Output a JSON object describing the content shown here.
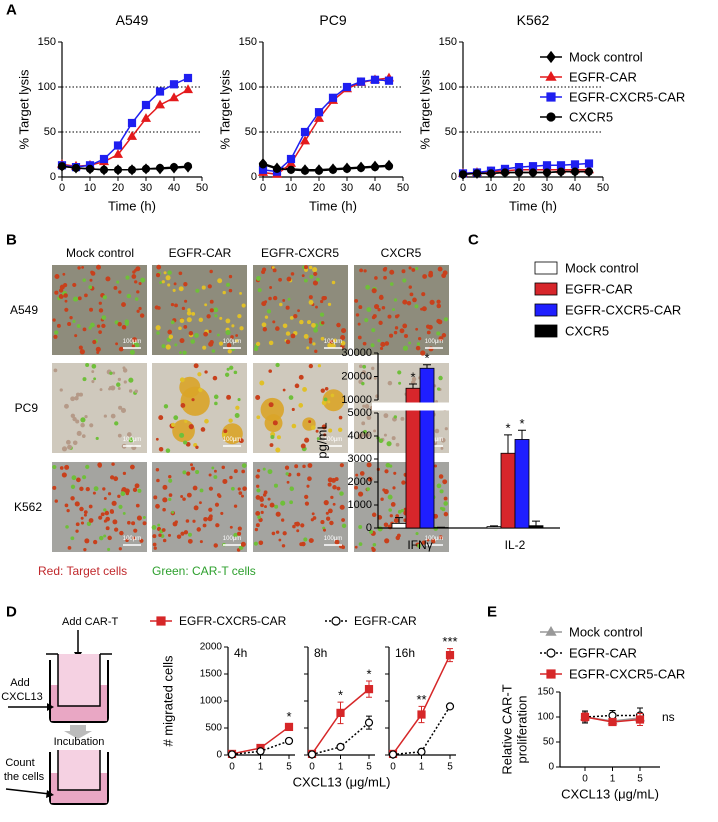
{
  "panel_labels": [
    "A",
    "B",
    "C",
    "D",
    "E"
  ],
  "chart_data": [
    {
      "type": "line",
      "title": "A549",
      "xlabel": "Time (h)",
      "ylabel": "% Target lysis",
      "x": [
        0,
        5,
        10,
        15,
        20,
        25,
        30,
        35,
        40,
        45
      ],
      "xlim": [
        0,
        50
      ],
      "xticks": [
        0,
        10,
        20,
        30,
        40,
        50
      ],
      "ylim": [
        0,
        150
      ],
      "yticks": [
        0,
        50,
        100,
        150
      ],
      "ref_lines": [
        50,
        100
      ],
      "series": [
        {
          "name": "Mock control",
          "color": "#000000",
          "marker": "diamond",
          "values": [
            12,
            10,
            9,
            8,
            8,
            8,
            9,
            9,
            10,
            11
          ]
        },
        {
          "name": "EGFR-CAR",
          "color": "#e41a1c",
          "marker": "triangle",
          "values": [
            14,
            12,
            13,
            17,
            25,
            45,
            65,
            80,
            88,
            97
          ]
        },
        {
          "name": "EGFR-CXCR5-CAR",
          "color": "#1f1ff0",
          "marker": "square",
          "values": [
            13,
            11,
            13,
            20,
            35,
            60,
            80,
            95,
            103,
            110
          ]
        },
        {
          "name": "CXCR5",
          "color": "#000000",
          "marker": "circle",
          "values": [
            12,
            10,
            9,
            8,
            8,
            8,
            9,
            10,
            11,
            12
          ]
        }
      ]
    },
    {
      "type": "line",
      "title": "PC9",
      "xlabel": "Time (h)",
      "ylabel": "% Target lysis",
      "x": [
        0,
        5,
        10,
        15,
        20,
        25,
        30,
        35,
        40,
        45
      ],
      "xlim": [
        0,
        50
      ],
      "xticks": [
        0,
        10,
        20,
        30,
        40,
        50
      ],
      "ylim": [
        0,
        150
      ],
      "yticks": [
        0,
        50,
        100,
        150
      ],
      "ref_lines": [
        50,
        100
      ],
      "series": [
        {
          "name": "Mock control",
          "color": "#000000",
          "marker": "diamond",
          "values": [
            15,
            10,
            9,
            8,
            8,
            9,
            10,
            11,
            12,
            13
          ]
        },
        {
          "name": "EGFR-CAR",
          "color": "#e41a1c",
          "marker": "triangle",
          "values": [
            5,
            3,
            15,
            40,
            65,
            85,
            98,
            105,
            108,
            110
          ]
        },
        {
          "name": "EGFR-CXCR5-CAR",
          "color": "#1f1ff0",
          "marker": "square",
          "values": [
            8,
            6,
            20,
            50,
            72,
            88,
            100,
            106,
            108,
            107
          ]
        },
        {
          "name": "CXCR5",
          "color": "#000000",
          "marker": "circle",
          "values": [
            14,
            9,
            8,
            7,
            7,
            8,
            9,
            10,
            11,
            12
          ]
        }
      ]
    },
    {
      "type": "line",
      "title": "K562",
      "xlabel": "Time (h)",
      "ylabel": "% Target lysis",
      "legend": "right",
      "x": [
        0,
        5,
        10,
        15,
        20,
        25,
        30,
        35,
        40,
        45
      ],
      "xlim": [
        0,
        50
      ],
      "xticks": [
        0,
        10,
        20,
        30,
        40,
        50
      ],
      "ylim": [
        0,
        150
      ],
      "yticks": [
        0,
        50,
        100,
        150
      ],
      "ref_lines": [
        50,
        100
      ],
      "series": [
        {
          "name": "Mock control",
          "color": "#000000",
          "marker": "diamond",
          "values": [
            3,
            4,
            4,
            5,
            5,
            5,
            5,
            6,
            6,
            6
          ]
        },
        {
          "name": "EGFR-CAR",
          "color": "#e41a1c",
          "marker": "triangle",
          "values": [
            4,
            5,
            6,
            7,
            8,
            8,
            8,
            8,
            8,
            8
          ]
        },
        {
          "name": "EGFR-CXCR5-CAR",
          "color": "#1f1ff0",
          "marker": "square",
          "values": [
            4,
            5,
            7,
            9,
            11,
            12,
            13,
            13,
            14,
            15
          ]
        },
        {
          "name": "CXCR5",
          "color": "#000000",
          "marker": "circle",
          "values": [
            3,
            4,
            4,
            5,
            5,
            5,
            5,
            6,
            6,
            6
          ]
        }
      ]
    },
    {
      "type": "bar",
      "categories": [
        "IFNγ",
        "IL-2"
      ],
      "ylabel": "pg/mL",
      "legend": "top",
      "edgecolor": "#000000",
      "ylim": [
        0,
        30000
      ],
      "axis_break": [
        5000,
        10000
      ],
      "yticks": [
        0,
        1000,
        2000,
        3000,
        4000,
        5000,
        10000,
        20000,
        30000
      ],
      "series": [
        {
          "name": "Mock control",
          "color": "#ffffff",
          "values": [
            200,
            60
          ],
          "errors": [
            250,
            30
          ]
        },
        {
          "name": "EGFR-CAR",
          "color": "#d7262b",
          "values": [
            15000,
            3250
          ],
          "errors": [
            1800,
            800
          ]
        },
        {
          "name": "EGFR-CXCR5-CAR",
          "color": "#1f1fff",
          "values": [
            23500,
            3850
          ],
          "errors": [
            1500,
            400
          ]
        },
        {
          "name": "CXCR5",
          "color": "#000000",
          "values": [
            20,
            100
          ],
          "errors": [
            10,
            200
          ]
        }
      ],
      "annotations": [
        {
          "text": "*",
          "category": "IFNγ",
          "series": "EGFR-CAR"
        },
        {
          "text": "*",
          "category": "IFNγ",
          "series": "EGFR-CXCR5-CAR"
        },
        {
          "text": "*",
          "category": "IL-2",
          "series": "EGFR-CAR"
        },
        {
          "text": "*",
          "category": "IL-2",
          "series": "EGFR-CXCR5-CAR"
        }
      ]
    },
    {
      "type": "line",
      "title": "4h",
      "ylabel": "# migrated cells",
      "legend": "top",
      "categories": [
        "0",
        "1",
        "5"
      ],
      "ylim": [
        0,
        2000
      ],
      "yticks": [
        0,
        500,
        1000,
        1500,
        2000
      ],
      "series": [
        {
          "name": "EGFR-CXCR5-CAR",
          "color": "#d62728",
          "marker": "square",
          "values": [
            20,
            130,
            520
          ],
          "errors": [
            10,
            30,
            60
          ]
        },
        {
          "name": "EGFR-CAR",
          "color": "#000000",
          "marker": "circle",
          "open": true,
          "dash": true,
          "values": [
            10,
            70,
            260
          ],
          "errors": [
            5,
            20,
            40
          ]
        }
      ],
      "annotations": [
        {
          "text": "*",
          "category": "5",
          "series": "EGFR-CXCR5-CAR"
        }
      ]
    },
    {
      "type": "line",
      "title": "8h",
      "xlabel": "CXCL13 (μg/mL)",
      "show_ytick_labels": false,
      "categories": [
        "0",
        "1",
        "5"
      ],
      "ylim": [
        0,
        2000
      ],
      "yticks": [
        0,
        500,
        1000,
        1500,
        2000
      ],
      "series": [
        {
          "name": "EGFR-CXCR5-CAR",
          "color": "#d62728",
          "marker": "square",
          "values": [
            20,
            780,
            1220
          ],
          "errors": [
            10,
            200,
            150
          ]
        },
        {
          "name": "EGFR-CAR",
          "color": "#000000",
          "marker": "circle",
          "open": true,
          "dash": true,
          "values": [
            10,
            150,
            600
          ],
          "errors": [
            5,
            40,
            120
          ]
        }
      ],
      "annotations": [
        {
          "text": "*",
          "category": "1",
          "series": "EGFR-CXCR5-CAR"
        },
        {
          "text": "*",
          "category": "5",
          "series": "EGFR-CXCR5-CAR"
        }
      ]
    },
    {
      "type": "line",
      "title": "16h",
      "show_ytick_labels": false,
      "categories": [
        "0",
        "1",
        "5"
      ],
      "ylim": [
        0,
        2000
      ],
      "yticks": [
        0,
        500,
        1000,
        1500,
        2000
      ],
      "series": [
        {
          "name": "EGFR-CXCR5-CAR",
          "color": "#d62728",
          "marker": "square",
          "values": [
            20,
            750,
            1850
          ],
          "errors": [
            10,
            150,
            120
          ]
        },
        {
          "name": "EGFR-CAR",
          "color": "#000000",
          "marker": "circle",
          "open": true,
          "dash": true,
          "values": [
            10,
            60,
            900
          ],
          "errors": [
            5,
            20,
            40
          ]
        }
      ],
      "annotations": [
        {
          "text": "**",
          "category": "1",
          "series": "EGFR-CXCR5-CAR"
        },
        {
          "text": "***",
          "category": "5",
          "series": "EGFR-CXCR5-CAR"
        }
      ]
    },
    {
      "type": "line",
      "ylabel": [
        "Relative CAR-T",
        "proliferation"
      ],
      "xlabel": "CXCL13 (μg/mL)",
      "legend": "top-left",
      "categories": [
        "0",
        "1",
        "5"
      ],
      "ylim": [
        0,
        150
      ],
      "yticks": [
        0,
        50,
        100,
        150
      ],
      "series": [
        {
          "name": "Mock control",
          "color": "#999999",
          "marker": "triangle",
          "values": [
            100,
            92,
            98
          ],
          "errors": [
            10,
            6,
            8
          ]
        },
        {
          "name": "EGFR-CAR",
          "color": "#000000",
          "marker": "circle",
          "open": true,
          "dash": true,
          "values": [
            100,
            103,
            103
          ],
          "errors": [
            12,
            10,
            15
          ]
        },
        {
          "name": "EGFR-CXCR5-CAR",
          "color": "#d62728",
          "marker": "square",
          "values": [
            100,
            90,
            95
          ],
          "errors": [
            8,
            5,
            12
          ]
        }
      ],
      "annotations": [
        {
          "text": "ns"
        }
      ]
    }
  ],
  "microscopy": {
    "columns": [
      "Mock control",
      "EGFR-CAR",
      "EGFR-CXCR5",
      "CXCR5"
    ],
    "rows": [
      "A549",
      "PC9",
      "K562"
    ],
    "scale_bar": "100μm",
    "caption": [
      "Red: Target cells",
      "Green: CAR-T cells"
    ]
  },
  "diagram": {
    "steps": [
      [
        "Add CAR-T"
      ],
      [
        "Add",
        "CXCL13"
      ],
      [
        "Incubation"
      ],
      [
        "Count",
        "the cells"
      ]
    ]
  }
}
